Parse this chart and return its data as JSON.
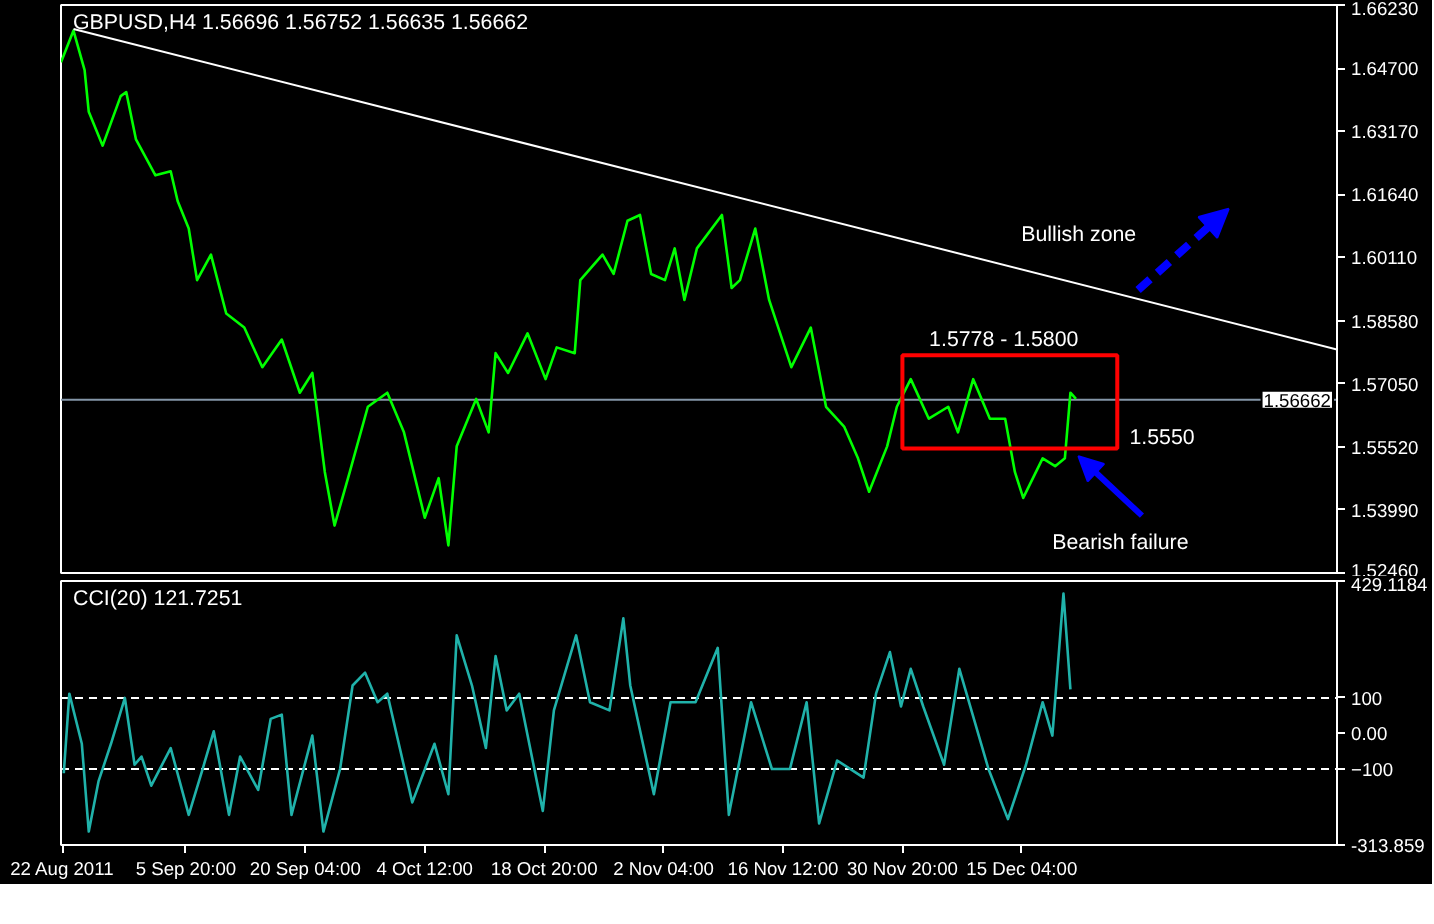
{
  "chart_data": [
    {
      "type": "line",
      "title": "GBPUSD,H4  1.56696 1.56752 1.56635 1.56662",
      "tick_labels": "y",
      "grid": false,
      "xlim": [
        "2011-08-21T20:00",
        "2012-01-22T00:00"
      ],
      "ylim": [
        1.5246,
        1.6623
      ],
      "yticks": [
        {
          "value": 1.6623,
          "label": "1.66230"
        },
        {
          "value": 1.647,
          "label": "1.64700"
        },
        {
          "value": 1.6317,
          "label": "1.63170"
        },
        {
          "value": 1.6164,
          "label": "1.61640"
        },
        {
          "value": 1.6011,
          "label": "1.60110"
        },
        {
          "value": 1.5858,
          "label": "1.58580"
        },
        {
          "value": 1.5705,
          "label": "1.57050"
        },
        {
          "value": 1.5552,
          "label": "1.55520"
        },
        {
          "value": 1.5399,
          "label": "1.53990"
        },
        {
          "value": 1.5246,
          "label": "1.52460"
        }
      ],
      "series": [
        {
          "color": "#00ff00",
          "x": [
            "2011-08-21T20:00",
            "2011-08-23T08:00",
            "2011-08-24T16:00",
            "2011-08-25T04:00",
            "2011-08-26T20:00",
            "2011-08-29T00:00",
            "2011-08-29T16:00",
            "2011-08-30T20:00",
            "2011-09-02T04:00",
            "2011-09-04T00:00",
            "2011-09-04T20:00",
            "2011-09-06T04:00",
            "2011-09-07T04:00",
            "2011-09-08T20:00",
            "2011-09-10T16:00",
            "2011-09-12T20:00",
            "2011-09-15T00:00",
            "2011-09-17T08:00",
            "2011-09-19T12:00",
            "2011-09-21T00:00",
            "2011-09-22T12:00",
            "2011-09-23T16:00",
            "2011-09-25T12:00",
            "2011-09-27T16:00",
            "2011-09-30T00:00",
            "2011-10-02T00:00",
            "2011-10-04T12:00",
            "2011-10-06T04:00",
            "2011-10-07T08:00",
            "2011-10-08T08:00",
            "2011-10-10T16:00",
            "2011-10-12T04:00",
            "2011-10-13T00:00",
            "2011-10-14T12:00",
            "2011-10-16T20:00",
            "2011-10-19T00:00",
            "2011-10-20T08:00",
            "2011-10-22T12:00",
            "2011-10-23T04:00",
            "2011-10-25T20:00",
            "2011-10-27T04:00",
            "2011-10-28T20:00",
            "2011-10-30T08:00",
            "2011-10-31T16:00",
            "2011-11-02T08:00",
            "2011-11-03T12:00",
            "2011-11-04T16:00",
            "2011-11-06T04:00",
            "2011-11-09T04:00",
            "2011-11-10T08:00",
            "2011-11-11T08:00",
            "2011-11-13T04:00",
            "2011-11-14T20:00",
            "2011-11-17T12:00",
            "2011-11-19T20:00",
            "2011-11-21T16:00",
            "2011-11-23T20:00",
            "2011-11-25T12:00",
            "2011-11-26T20:00",
            "2011-11-29T00:00",
            "2011-11-30T04:00",
            "2011-12-01T20:00",
            "2011-12-04T00:00",
            "2011-12-06T08:00",
            "2011-12-07T12:00",
            "2011-12-09T08:00",
            "2011-12-11T08:00",
            "2011-12-13T04:00",
            "2011-12-14T08:00",
            "2011-12-15T08:00",
            "2011-12-17T16:00",
            "2011-12-19T04:00",
            "2011-12-20T08:00",
            "2011-12-21T00:00",
            "2011-12-21T16:00"
          ],
          "values": [
            1.6484,
            1.6561,
            1.6465,
            1.6364,
            1.6282,
            1.6402,
            1.6412,
            1.6297,
            1.621,
            1.622,
            1.6148,
            1.6081,
            1.5956,
            1.6018,
            1.5875,
            1.5841,
            1.5745,
            1.5812,
            1.5683,
            1.5731,
            1.5491,
            1.5361,
            1.5491,
            1.5649,
            1.5683,
            1.5587,
            1.538,
            1.5476,
            1.5313,
            1.5553,
            1.5668,
            1.5587,
            1.5779,
            1.5731,
            1.5827,
            1.5716,
            1.5793,
            1.5779,
            1.5956,
            1.6018,
            1.5971,
            1.61,
            1.6114,
            1.5971,
            1.5956,
            1.6033,
            1.5908,
            1.6033,
            1.6114,
            1.5937,
            1.5956,
            1.6081,
            1.5908,
            1.5745,
            1.5841,
            1.5649,
            1.5601,
            1.5524,
            1.5443,
            1.5553,
            1.5649,
            1.5716,
            1.562,
            1.5649,
            1.5587,
            1.5716,
            1.562,
            1.562,
            1.5491,
            1.5428,
            1.5524,
            1.5505,
            1.5524,
            1.5683,
            1.5668
          ]
        },
        {
          "color": "#ffffff",
          "x": [
            "2011-08-23T08:00",
            "2012-01-22T00:00"
          ],
          "values": [
            1.6565,
            1.5788
          ]
        }
      ],
      "ref_lines": [
        {
          "axis": "y",
          "value": 1.56662,
          "label": "1.56662",
          "color": "#8496a8"
        }
      ],
      "annotations": [
        "1.5778 - 1.5800",
        "1.5550",
        "Bullish zone",
        "Bearish failure"
      ]
    },
    {
      "type": "line",
      "title": "CCI(20) 121.7251",
      "grid": false,
      "xlim": [
        "2011-08-21T20:00",
        "2012-01-22T00:00"
      ],
      "ylim": [
        -313.859,
        429.1184
      ],
      "xticks": [
        {
          "value": "2011-08-22T00:00",
          "label": "22 Aug 2011"
        },
        {
          "value": "2011-09-05T20:00",
          "label": "5 Sep 20:00"
        },
        {
          "value": "2011-09-20T04:00",
          "label": "20 Sep 04:00"
        },
        {
          "value": "2011-10-04T12:00",
          "label": "4 Oct 12:00"
        },
        {
          "value": "2011-10-18T20:00",
          "label": "18 Oct 20:00"
        },
        {
          "value": "2011-11-02T04:00",
          "label": "2 Nov 04:00"
        },
        {
          "value": "2011-11-16T12:00",
          "label": "16 Nov 12:00"
        },
        {
          "value": "2011-11-30T20:00",
          "label": "30 Nov 20:00"
        },
        {
          "value": "2011-12-15T04:00",
          "label": "15 Dec 04:00"
        }
      ],
      "yticks": [
        {
          "value": 429.1184,
          "label": "429.1184"
        },
        100,
        {
          "value": 0,
          "label": "0.00"
        },
        -100,
        {
          "value": -313.859,
          "label": "-313.859"
        }
      ],
      "series": [
        {
          "color": "#20b2aa",
          "x": [
            "2011-08-22T04:00",
            "2011-08-22T20:00",
            "2011-08-24T08:00",
            "2011-08-25T04:00",
            "2011-08-26T08:00",
            "2011-08-27T20:00",
            "2011-08-29T12:00",
            "2011-08-30T16:00",
            "2011-08-31T12:00",
            "2011-09-01T16:00",
            "2011-09-04T00:00",
            "2011-09-06T04:00",
            "2011-09-07T20:00",
            "2011-09-09T04:00",
            "2011-09-11T00:00",
            "2011-09-12T08:00",
            "2011-09-14T12:00",
            "2011-09-16T00:00",
            "2011-09-17T08:00",
            "2011-09-18T12:00",
            "2011-09-21T00:00",
            "2011-09-22T08:00",
            "2011-09-24T08:00",
            "2011-09-25T20:00",
            "2011-09-27T08:00",
            "2011-09-28T20:00",
            "2011-09-30T00:00",
            "2011-10-01T12:00",
            "2011-10-03T00:00",
            "2011-10-05T16:00",
            "2011-10-07T08:00",
            "2011-10-08T08:00",
            "2011-10-10T04:00",
            "2011-10-11T20:00",
            "2011-10-13T00:00",
            "2011-10-14T08:00",
            "2011-10-15T20:00",
            "2011-10-18T16:00",
            "2011-10-20T00:00",
            "2011-10-22T16:00",
            "2011-10-24T08:00",
            "2011-10-26T16:00",
            "2011-10-28T08:00",
            "2011-10-29T04:00",
            "2011-11-01T00:00",
            "2011-11-03T00:00",
            "2011-11-06T00:00",
            "2011-11-08T16:00",
            "2011-11-10T00:00",
            "2011-11-12T16:00",
            "2011-11-15T04:00",
            "2011-11-17T08:00",
            "2011-11-19T08:00",
            "2011-11-20T20:00",
            "2011-11-23T00:00",
            "2011-11-26T04:00",
            "2011-11-27T16:00",
            "2011-11-29T08:00",
            "2011-11-30T16:00",
            "2011-12-01T20:00",
            "2011-12-03T08:00",
            "2011-12-05T20:00",
            "2011-12-07T16:00",
            "2011-12-11T04:00",
            "2011-12-13T12:00",
            "2011-12-15T16:00",
            "2011-12-17T16:00",
            "2011-12-18T20:00",
            "2011-12-20T04:00",
            "2011-12-21T00:00"
          ],
          "values": [
            -112,
            112,
            -29,
            -276,
            -135,
            -29,
            100,
            -88,
            -65,
            -147,
            -41,
            -229,
            -100,
            6,
            -229,
            -65,
            -159,
            41,
            53,
            -229,
            -6,
            -276,
            -100,
            135,
            171,
            88,
            112,
            -41,
            -194,
            -29,
            -171,
            276,
            135,
            -41,
            218,
            65,
            112,
            -218,
            65,
            276,
            88,
            65,
            324,
            135,
            -171,
            88,
            88,
            241,
            -229,
            88,
            -100,
            -100,
            88,
            -253,
            -76,
            -124,
            112,
            229,
            76,
            182,
            76,
            -88,
            182,
            -100,
            -241,
            -88,
            88,
            -6,
            394,
            124
          ]
        }
      ],
      "ref_lines": [
        {
          "axis": "y",
          "value": 100,
          "color": "#ffffff",
          "line_style": "dashed"
        },
        {
          "axis": "y",
          "value": -100,
          "color": "#ffffff",
          "line_style": "dashed"
        }
      ]
    }
  ]
}
